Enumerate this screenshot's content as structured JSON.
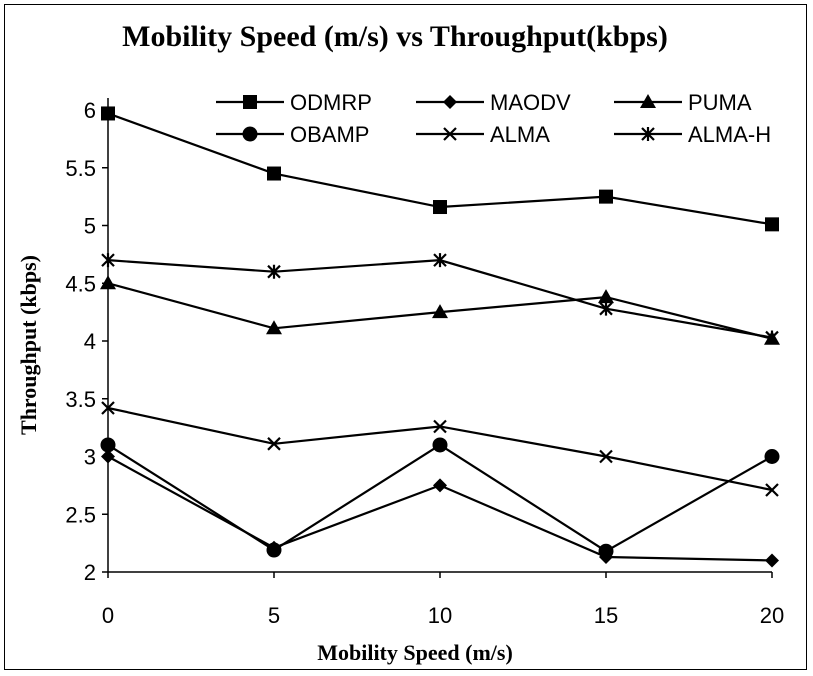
{
  "chart_data": {
    "type": "line",
    "title": "Mobility Speed (m/s) vs Throughput(kbps)",
    "xlabel": "Mobility Speed (m/s)",
    "ylabel": "Throughput (kbps)",
    "x": [
      0,
      5,
      10,
      15,
      20
    ],
    "x_ticks": [
      "0",
      "5",
      "10",
      "15",
      "20"
    ],
    "y_ticks": [
      "2",
      "2.5",
      "3",
      "3.5",
      "4",
      "4.5",
      "5",
      "5.5",
      "6"
    ],
    "ylim": [
      2,
      6
    ],
    "legend_position": "top-right",
    "grid": false,
    "series": [
      {
        "name": "ODMRP",
        "marker": "square",
        "values": [
          5.97,
          5.45,
          5.16,
          5.25,
          5.01
        ]
      },
      {
        "name": "MAODV",
        "marker": "diamond",
        "values": [
          3.0,
          2.21,
          2.75,
          2.13,
          2.1
        ]
      },
      {
        "name": "PUMA",
        "marker": "triangle",
        "values": [
          4.5,
          4.11,
          4.25,
          4.38,
          4.02
        ]
      },
      {
        "name": "OBAMP",
        "marker": "circle",
        "values": [
          3.1,
          2.19,
          3.1,
          2.18,
          3.0
        ]
      },
      {
        "name": "ALMA",
        "marker": "x",
        "values": [
          3.42,
          3.11,
          3.26,
          3.0,
          2.71
        ]
      },
      {
        "name": "ALMA-H",
        "marker": "star",
        "values": [
          4.7,
          4.6,
          4.7,
          4.28,
          4.03
        ]
      }
    ]
  }
}
